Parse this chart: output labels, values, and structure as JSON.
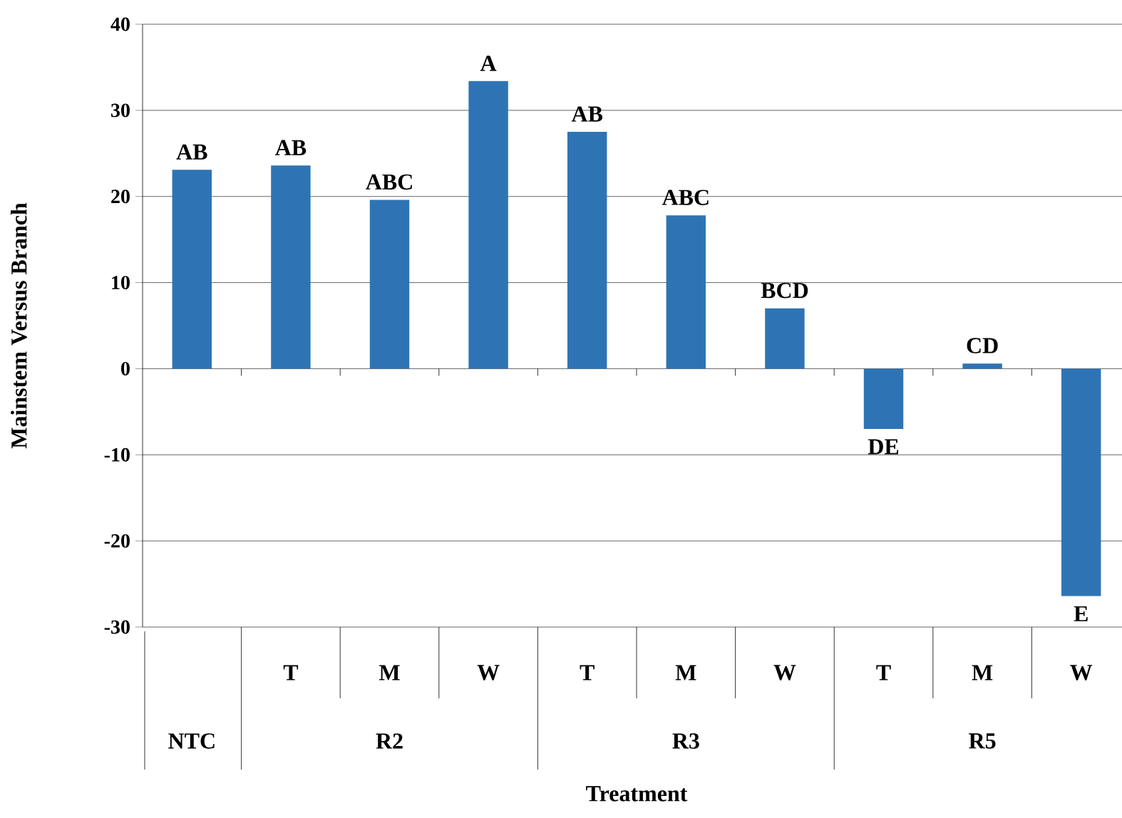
{
  "chart_data": {
    "type": "bar",
    "xlabel": "Treatment",
    "ylabel": "Mainstem Versus Branch",
    "categories": [
      null,
      "T",
      "M",
      "W",
      "T",
      "M",
      "W",
      "T",
      "M",
      "W"
    ],
    "values": [
      23.1,
      23.6,
      19.6,
      33.4,
      27.5,
      17.8,
      7.0,
      -7.0,
      0.6,
      -26.4
    ],
    "value_labels": [
      "AB",
      "AB",
      "ABC",
      "A",
      "AB",
      "ABC",
      "BCD",
      "DE",
      "CD",
      "E"
    ],
    "color": "#2e74b5",
    "ylim": [
      -30,
      40
    ],
    "yticks": [
      -30,
      -20,
      -10,
      0,
      10,
      20,
      30,
      40
    ],
    "grid": "y",
    "annotations": [
      "NTC",
      "R2",
      "R3",
      "R5"
    ]
  }
}
